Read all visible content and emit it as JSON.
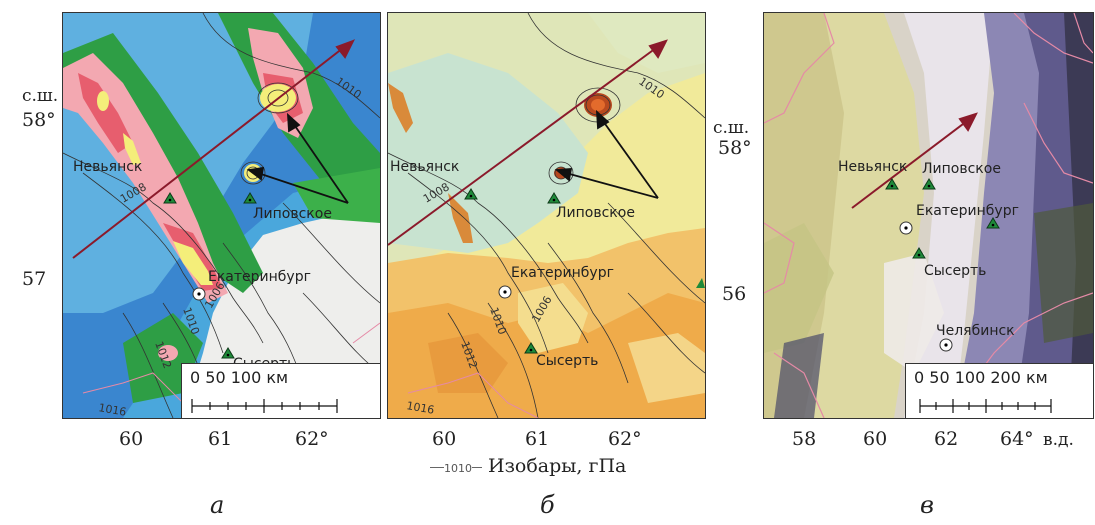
{
  "panel_letters": [
    "а",
    "б",
    "в"
  ],
  "latitude_label": "с.ш.",
  "longitude_suffix": "в.д.",
  "panel_a": {
    "lat_ticks": [
      "58°",
      "57"
    ],
    "lon_ticks": [
      "60",
      "61",
      "62°"
    ],
    "cities": [
      "Невьянск",
      "Липовское",
      "Екатеринбург",
      "Сысерть"
    ],
    "isobar_labels": [
      "1010",
      "1008",
      "1010",
      "1006",
      "1012",
      "1016"
    ],
    "scale": {
      "ticks": "0       50     100 км"
    }
  },
  "panel_b": {
    "lon_ticks": [
      "60",
      "61",
      "62°"
    ],
    "cities": [
      "Невьянск",
      "Липовское",
      "Екатеринбург",
      "Сысерть"
    ],
    "isobar_labels": [
      "1010",
      "1008",
      "1010",
      "1006",
      "1012",
      "1016"
    ]
  },
  "panel_c": {
    "lat_ticks": [
      "58°",
      "56"
    ],
    "lon_ticks": [
      "58",
      "60",
      "62",
      "64°"
    ],
    "cities": [
      "Невьянск",
      "Липовское",
      "Екатеринбург",
      "Сысерть",
      "Челябинск"
    ],
    "scale": {
      "ticks": "0  50 100   200 км"
    }
  },
  "legend": {
    "sample_value": "1010",
    "label": "Изобары, гПа"
  },
  "colors": {
    "arrow_dark_red": "#8b1a2b",
    "station_green": "#1f8a3a",
    "border_pink": "#e58aa6"
  }
}
